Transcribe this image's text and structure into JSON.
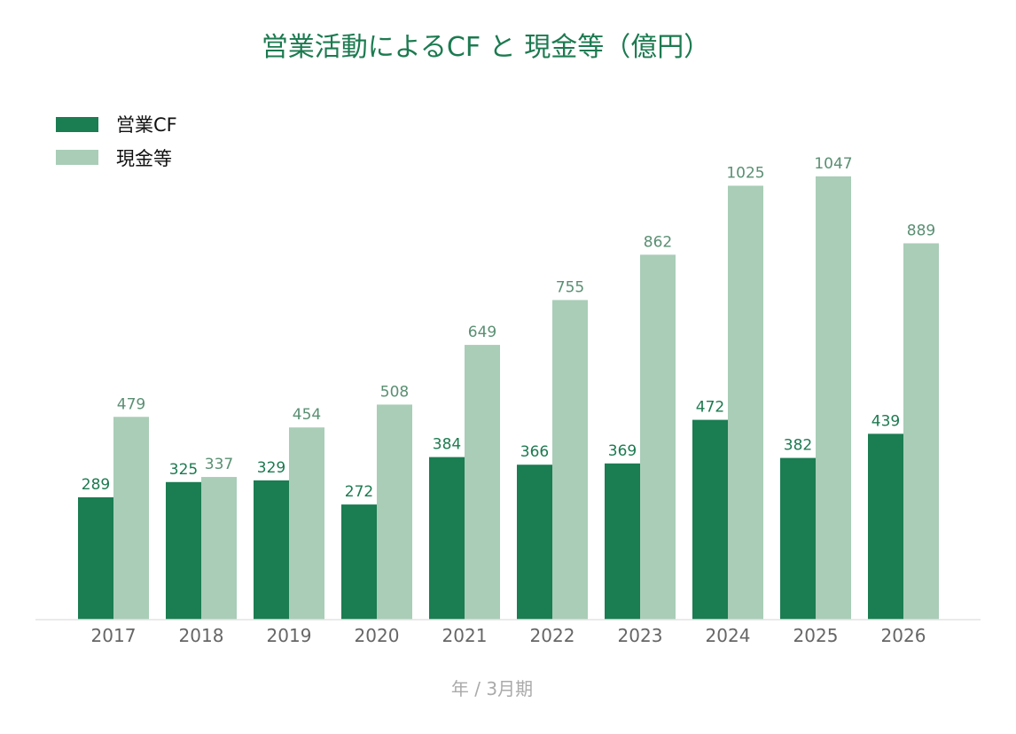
{
  "chart_data": {
    "type": "bar",
    "title": "営業活動によるCF と 現金等（億円）",
    "xlabel": "年 / 3月期",
    "ylabel": "",
    "categories": [
      "2017",
      "2018",
      "2019",
      "2020",
      "2021",
      "2022",
      "2023",
      "2024",
      "2025",
      "2026"
    ],
    "series": [
      {
        "name": "営業CF",
        "color": "#1b7d52",
        "values": [
          289,
          325,
          329,
          272,
          384,
          366,
          369,
          472,
          382,
          439
        ]
      },
      {
        "name": "現金等",
        "color": "#a9cdb7",
        "values": [
          479,
          337,
          454,
          508,
          649,
          755,
          862,
          1025,
          1047,
          889
        ]
      }
    ],
    "ylim": [
      0,
      1050
    ],
    "grid": false,
    "legend_position": "top-left",
    "data_labels": true
  }
}
